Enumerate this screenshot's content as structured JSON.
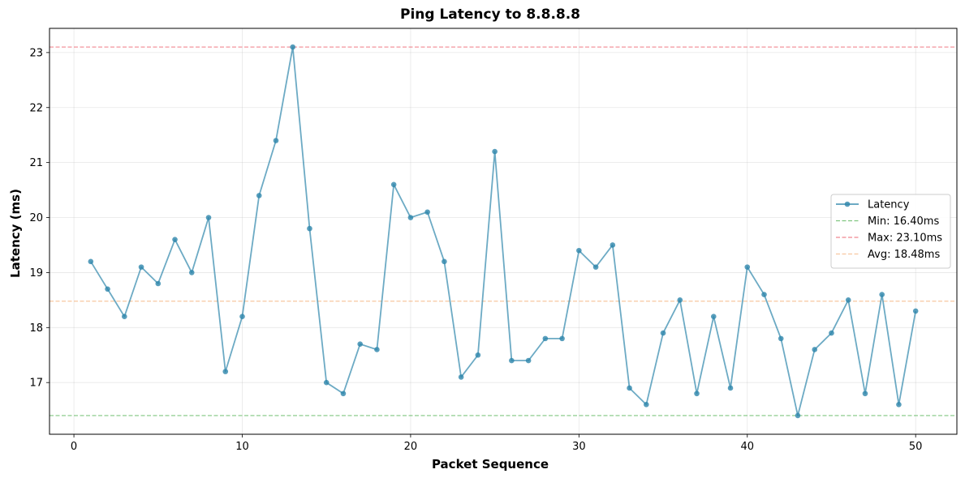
{
  "chart_data": {
    "type": "line",
    "title": "Ping Latency to 8.8.8.8",
    "xlabel": "Packet Sequence",
    "ylabel": "Latency (ms)",
    "xlim": [
      -1.45,
      52.45
    ],
    "ylim": [
      16.06,
      23.44
    ],
    "xticks": [
      0,
      10,
      20,
      30,
      40,
      50
    ],
    "yticks": [
      17,
      18,
      19,
      20,
      21,
      22,
      23
    ],
    "grid": true,
    "legend_position": "center-right",
    "series": [
      {
        "name": "Latency",
        "color": "#2e86ab",
        "marker": "circle",
        "x": [
          1,
          2,
          3,
          4,
          5,
          6,
          7,
          8,
          9,
          10,
          11,
          12,
          13,
          14,
          15,
          16,
          17,
          18,
          19,
          20,
          21,
          22,
          23,
          24,
          25,
          26,
          27,
          28,
          29,
          30,
          31,
          32,
          33,
          34,
          35,
          36,
          37,
          38,
          39,
          40,
          41,
          42,
          43,
          44,
          45,
          46,
          47,
          48,
          49,
          50
        ],
        "y": [
          19.2,
          18.7,
          18.2,
          19.1,
          18.8,
          19.6,
          19.0,
          20.0,
          17.2,
          18.2,
          20.4,
          21.4,
          23.1,
          19.8,
          17.0,
          16.8,
          17.7,
          17.6,
          20.6,
          20.0,
          20.1,
          19.2,
          17.1,
          17.5,
          21.2,
          17.4,
          17.4,
          17.8,
          17.8,
          19.4,
          19.1,
          19.5,
          16.9,
          16.6,
          17.9,
          18.5,
          16.8,
          18.2,
          16.9,
          19.1,
          18.6,
          17.8,
          16.4,
          17.6,
          17.9,
          18.5,
          16.8,
          18.6,
          16.6,
          18.3
        ]
      }
    ],
    "reference_lines": [
      {
        "name": "Min: 16.40ms",
        "value": 16.4,
        "color": "#2ca02c"
      },
      {
        "name": "Max: 23.10ms",
        "value": 23.1,
        "color": "#e63946"
      },
      {
        "name": "Avg: 18.48ms",
        "value": 18.48,
        "color": "#f4a261"
      }
    ]
  }
}
